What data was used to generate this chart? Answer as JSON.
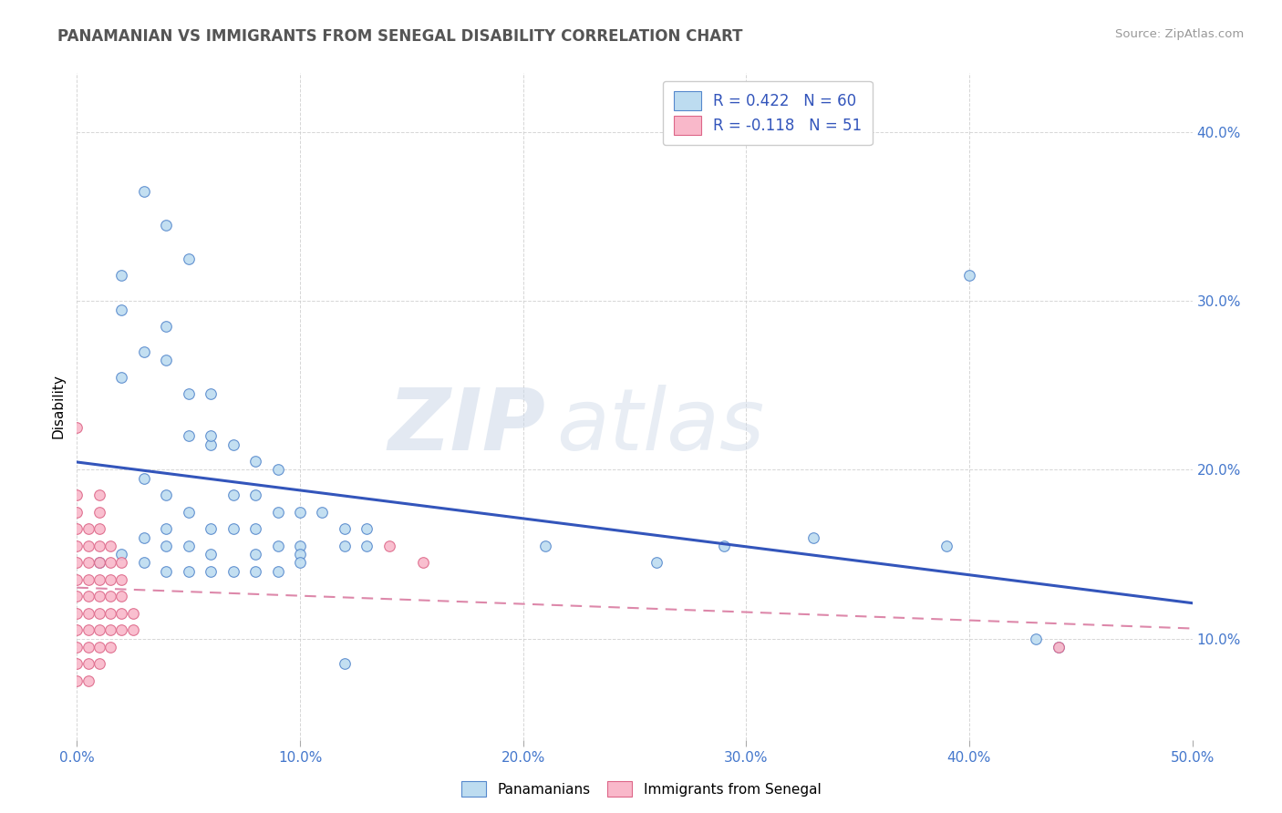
{
  "title": "PANAMANIAN VS IMMIGRANTS FROM SENEGAL DISABILITY CORRELATION CHART",
  "source": "Source: ZipAtlas.com",
  "ylabel_label": "Disability",
  "xmin": 0.0,
  "xmax": 0.5,
  "ymin": 0.04,
  "ymax": 0.435,
  "legend_blue_R": "R = 0.422",
  "legend_blue_N": "N = 60",
  "legend_pink_R": "R = -0.118",
  "legend_pink_N": "N = 51",
  "blue_fill": "#BDDCF0",
  "pink_fill": "#F9B8CA",
  "blue_edge": "#5588CC",
  "pink_edge": "#DD6688",
  "blue_line": "#3355BB",
  "pink_line": "#DD88AA",
  "blue_scatter": [
    [
      0.03,
      0.365
    ],
    [
      0.04,
      0.345
    ],
    [
      0.05,
      0.325
    ],
    [
      0.02,
      0.295
    ],
    [
      0.04,
      0.285
    ],
    [
      0.02,
      0.315
    ],
    [
      0.03,
      0.27
    ],
    [
      0.04,
      0.265
    ],
    [
      0.05,
      0.245
    ],
    [
      0.06,
      0.245
    ],
    [
      0.02,
      0.255
    ],
    [
      0.06,
      0.215
    ],
    [
      0.07,
      0.215
    ],
    [
      0.05,
      0.22
    ],
    [
      0.06,
      0.22
    ],
    [
      0.08,
      0.205
    ],
    [
      0.09,
      0.2
    ],
    [
      0.03,
      0.195
    ],
    [
      0.04,
      0.185
    ],
    [
      0.07,
      0.185
    ],
    [
      0.08,
      0.185
    ],
    [
      0.1,
      0.175
    ],
    [
      0.11,
      0.175
    ],
    [
      0.09,
      0.175
    ],
    [
      0.05,
      0.175
    ],
    [
      0.06,
      0.165
    ],
    [
      0.12,
      0.165
    ],
    [
      0.13,
      0.165
    ],
    [
      0.07,
      0.165
    ],
    [
      0.08,
      0.165
    ],
    [
      0.04,
      0.165
    ],
    [
      0.03,
      0.16
    ],
    [
      0.04,
      0.155
    ],
    [
      0.09,
      0.155
    ],
    [
      0.1,
      0.155
    ],
    [
      0.12,
      0.155
    ],
    [
      0.13,
      0.155
    ],
    [
      0.05,
      0.155
    ],
    [
      0.06,
      0.15
    ],
    [
      0.08,
      0.15
    ],
    [
      0.1,
      0.15
    ],
    [
      0.02,
      0.15
    ],
    [
      0.03,
      0.145
    ],
    [
      0.01,
      0.145
    ],
    [
      0.05,
      0.14
    ],
    [
      0.06,
      0.14
    ],
    [
      0.07,
      0.14
    ],
    [
      0.08,
      0.14
    ],
    [
      0.09,
      0.14
    ],
    [
      0.1,
      0.145
    ],
    [
      0.04,
      0.14
    ],
    [
      0.21,
      0.155
    ],
    [
      0.26,
      0.145
    ],
    [
      0.29,
      0.155
    ],
    [
      0.33,
      0.16
    ],
    [
      0.39,
      0.155
    ],
    [
      0.43,
      0.1
    ],
    [
      0.44,
      0.095
    ],
    [
      0.4,
      0.315
    ],
    [
      0.12,
      0.085
    ]
  ],
  "pink_scatter": [
    [
      0.0,
      0.225
    ],
    [
      0.0,
      0.185
    ],
    [
      0.01,
      0.185
    ],
    [
      0.0,
      0.175
    ],
    [
      0.01,
      0.175
    ],
    [
      0.0,
      0.165
    ],
    [
      0.005,
      0.165
    ],
    [
      0.01,
      0.165
    ],
    [
      0.0,
      0.155
    ],
    [
      0.005,
      0.155
    ],
    [
      0.01,
      0.155
    ],
    [
      0.015,
      0.155
    ],
    [
      0.0,
      0.145
    ],
    [
      0.005,
      0.145
    ],
    [
      0.01,
      0.145
    ],
    [
      0.015,
      0.145
    ],
    [
      0.02,
      0.145
    ],
    [
      0.0,
      0.135
    ],
    [
      0.005,
      0.135
    ],
    [
      0.01,
      0.135
    ],
    [
      0.015,
      0.135
    ],
    [
      0.02,
      0.135
    ],
    [
      0.0,
      0.125
    ],
    [
      0.005,
      0.125
    ],
    [
      0.01,
      0.125
    ],
    [
      0.015,
      0.125
    ],
    [
      0.02,
      0.125
    ],
    [
      0.0,
      0.115
    ],
    [
      0.005,
      0.115
    ],
    [
      0.01,
      0.115
    ],
    [
      0.015,
      0.115
    ],
    [
      0.02,
      0.115
    ],
    [
      0.025,
      0.115
    ],
    [
      0.0,
      0.105
    ],
    [
      0.005,
      0.105
    ],
    [
      0.01,
      0.105
    ],
    [
      0.015,
      0.105
    ],
    [
      0.02,
      0.105
    ],
    [
      0.025,
      0.105
    ],
    [
      0.0,
      0.095
    ],
    [
      0.005,
      0.095
    ],
    [
      0.01,
      0.095
    ],
    [
      0.015,
      0.095
    ],
    [
      0.0,
      0.085
    ],
    [
      0.005,
      0.085
    ],
    [
      0.01,
      0.085
    ],
    [
      0.0,
      0.075
    ],
    [
      0.005,
      0.075
    ],
    [
      0.14,
      0.155
    ],
    [
      0.155,
      0.145
    ],
    [
      0.44,
      0.095
    ]
  ],
  "watermark_text": "ZIP",
  "watermark_text2": "atlas",
  "background_color": "#ffffff",
  "grid_color": "#cccccc"
}
